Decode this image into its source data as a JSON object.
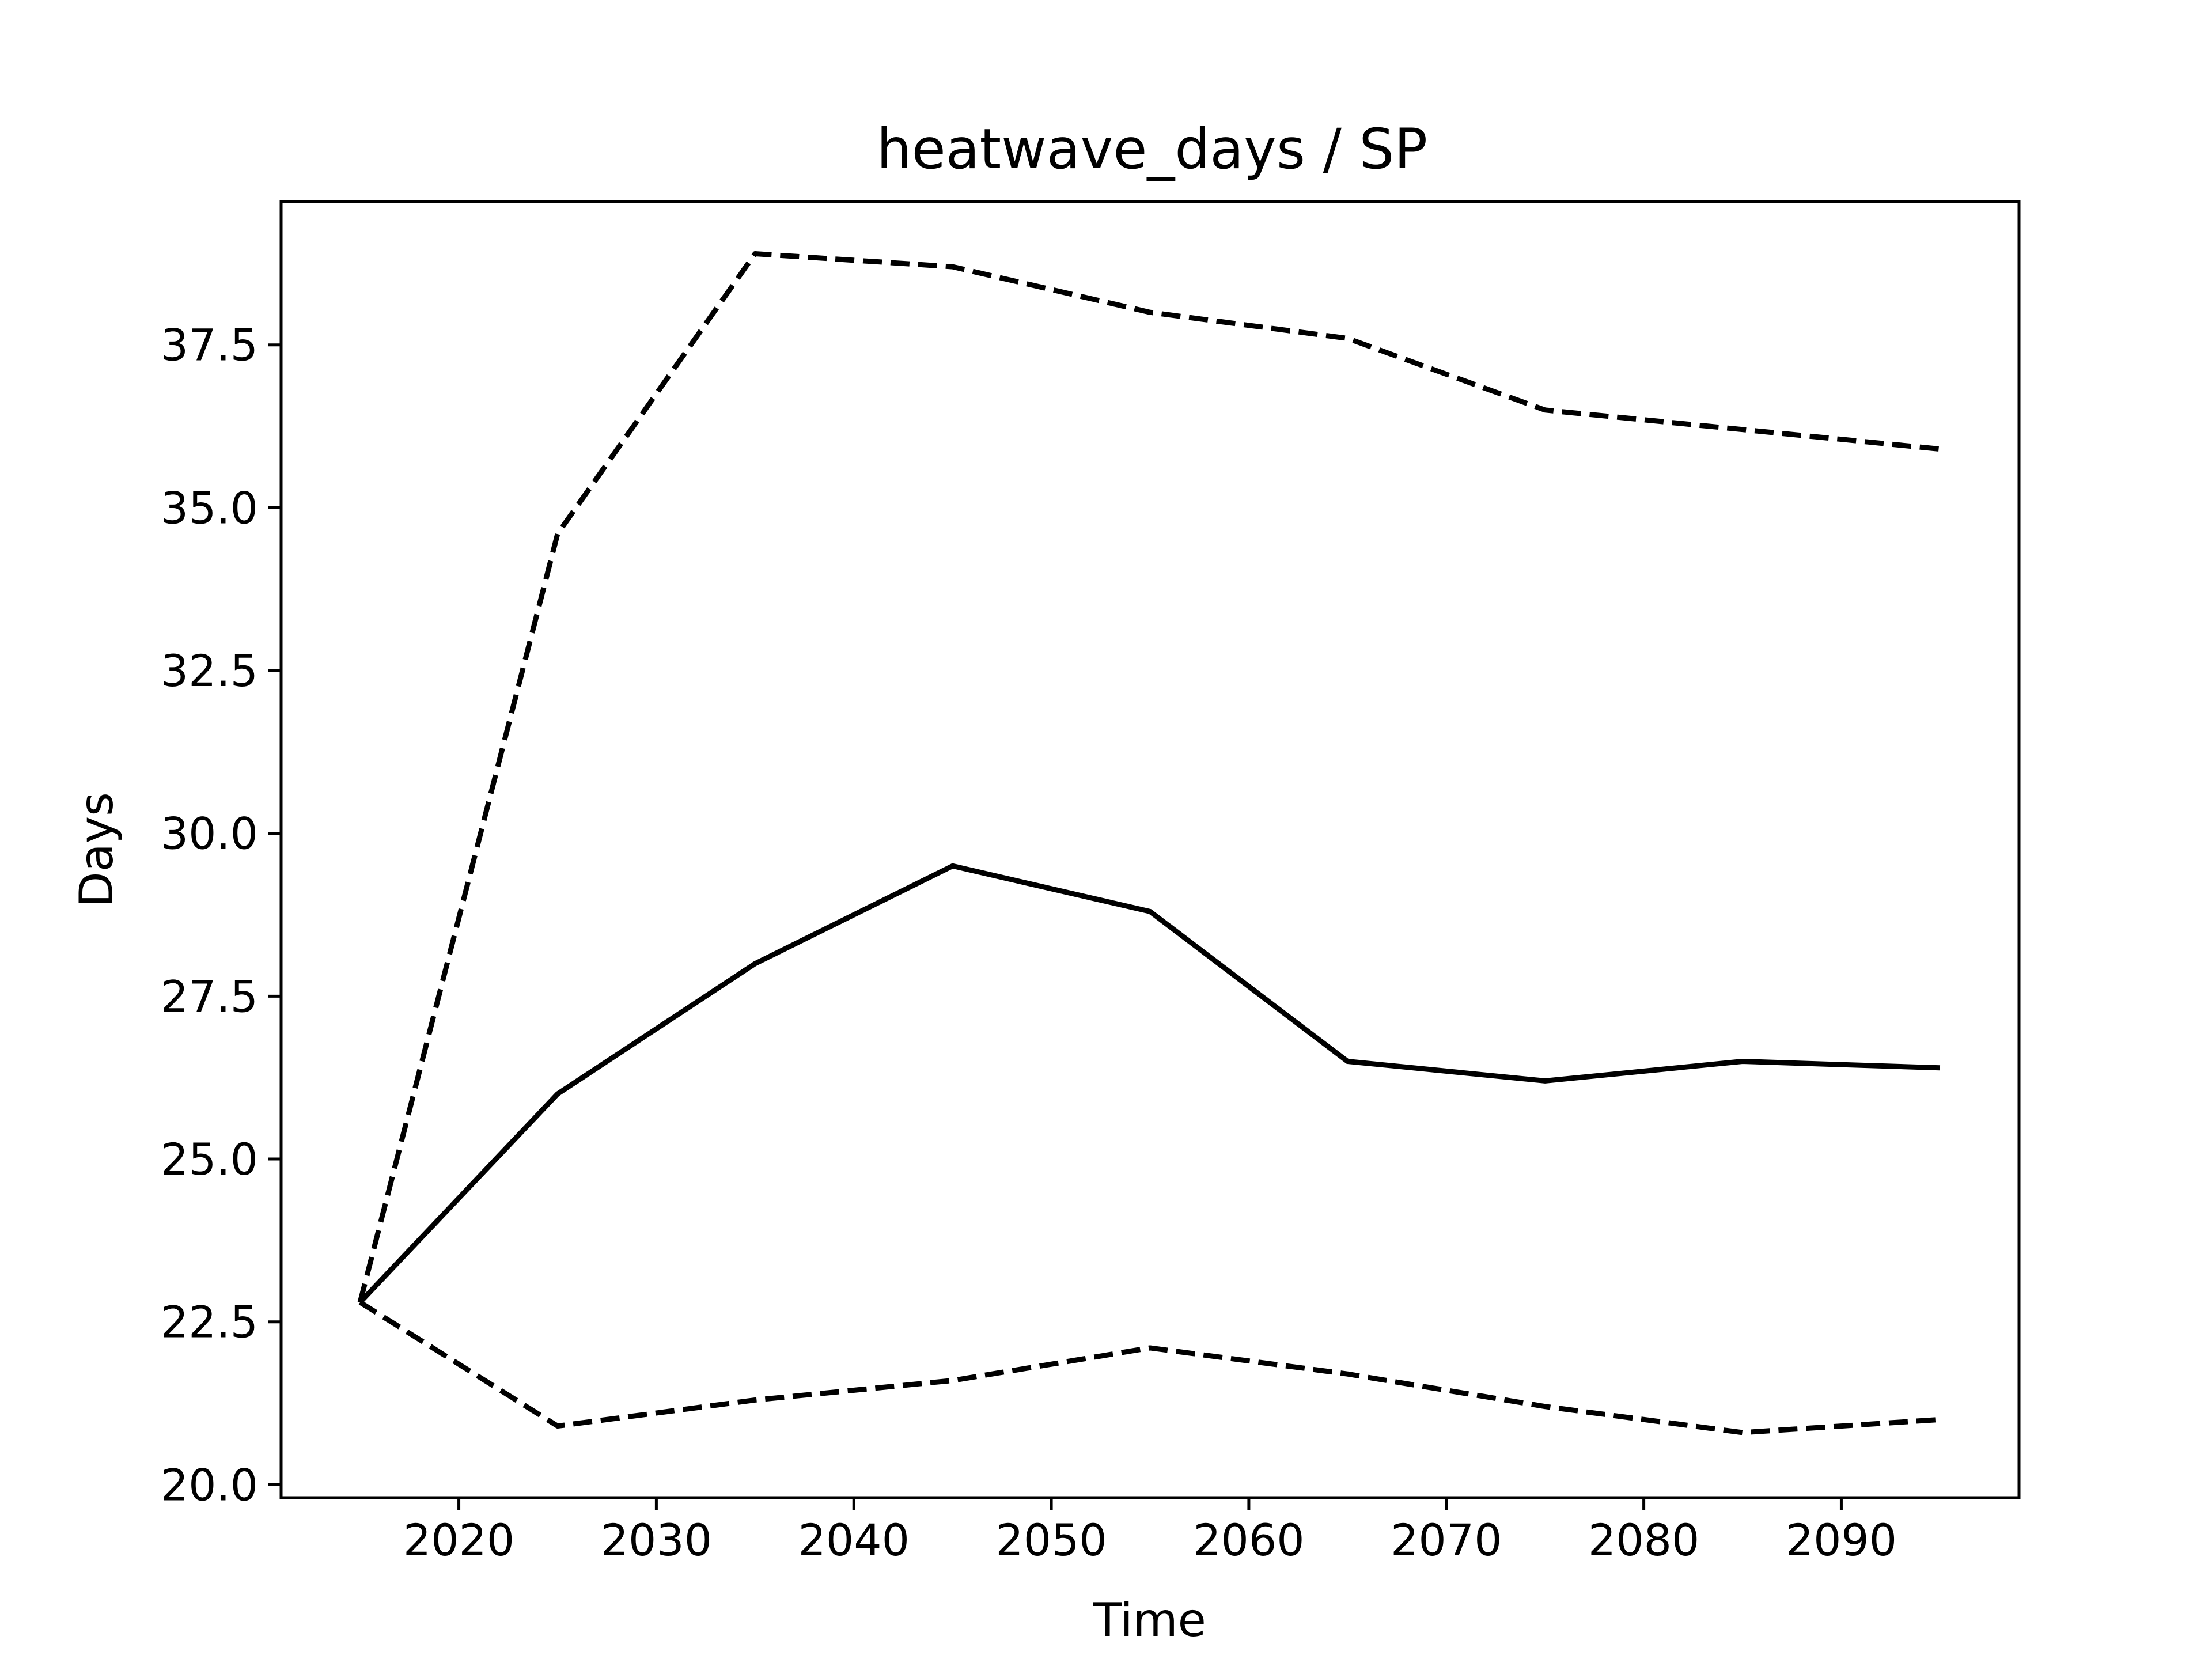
{
  "chart_data": {
    "type": "line",
    "title": "heatwave_days / SP",
    "xlabel": "Time",
    "ylabel": "Days",
    "xlim": [
      2011,
      2099
    ],
    "ylim": [
      19.8,
      39.7
    ],
    "x_ticks": [
      2020,
      2030,
      2040,
      2050,
      2060,
      2070,
      2080,
      2090
    ],
    "y_ticks": [
      20.0,
      22.5,
      25.0,
      27.5,
      30.0,
      32.5,
      35.0,
      37.5
    ],
    "y_tick_labels": [
      "20.0",
      "22.5",
      "25.0",
      "27.5",
      "30.0",
      "32.5",
      "35.0",
      "37.5"
    ],
    "x_tick_labels": [
      "2020",
      "2030",
      "2040",
      "2050",
      "2060",
      "2070",
      "2080",
      "2090"
    ],
    "grid": false,
    "line_color": "#000000",
    "x": [
      2015,
      2025,
      2035,
      2045,
      2055,
      2065,
      2075,
      2085,
      2095
    ],
    "series": [
      {
        "style": "dashed",
        "values": [
          22.8,
          34.6,
          38.9,
          38.7,
          38.0,
          37.6,
          36.5,
          36.2,
          35.9
        ]
      },
      {
        "style": "solid",
        "values": [
          22.8,
          26.0,
          28.0,
          29.5,
          28.8,
          26.5,
          26.2,
          26.5,
          26.4
        ]
      },
      {
        "style": "dashed",
        "values": [
          22.8,
          20.9,
          21.3,
          21.6,
          22.1,
          21.7,
          21.2,
          20.8,
          21.0
        ]
      }
    ]
  }
}
